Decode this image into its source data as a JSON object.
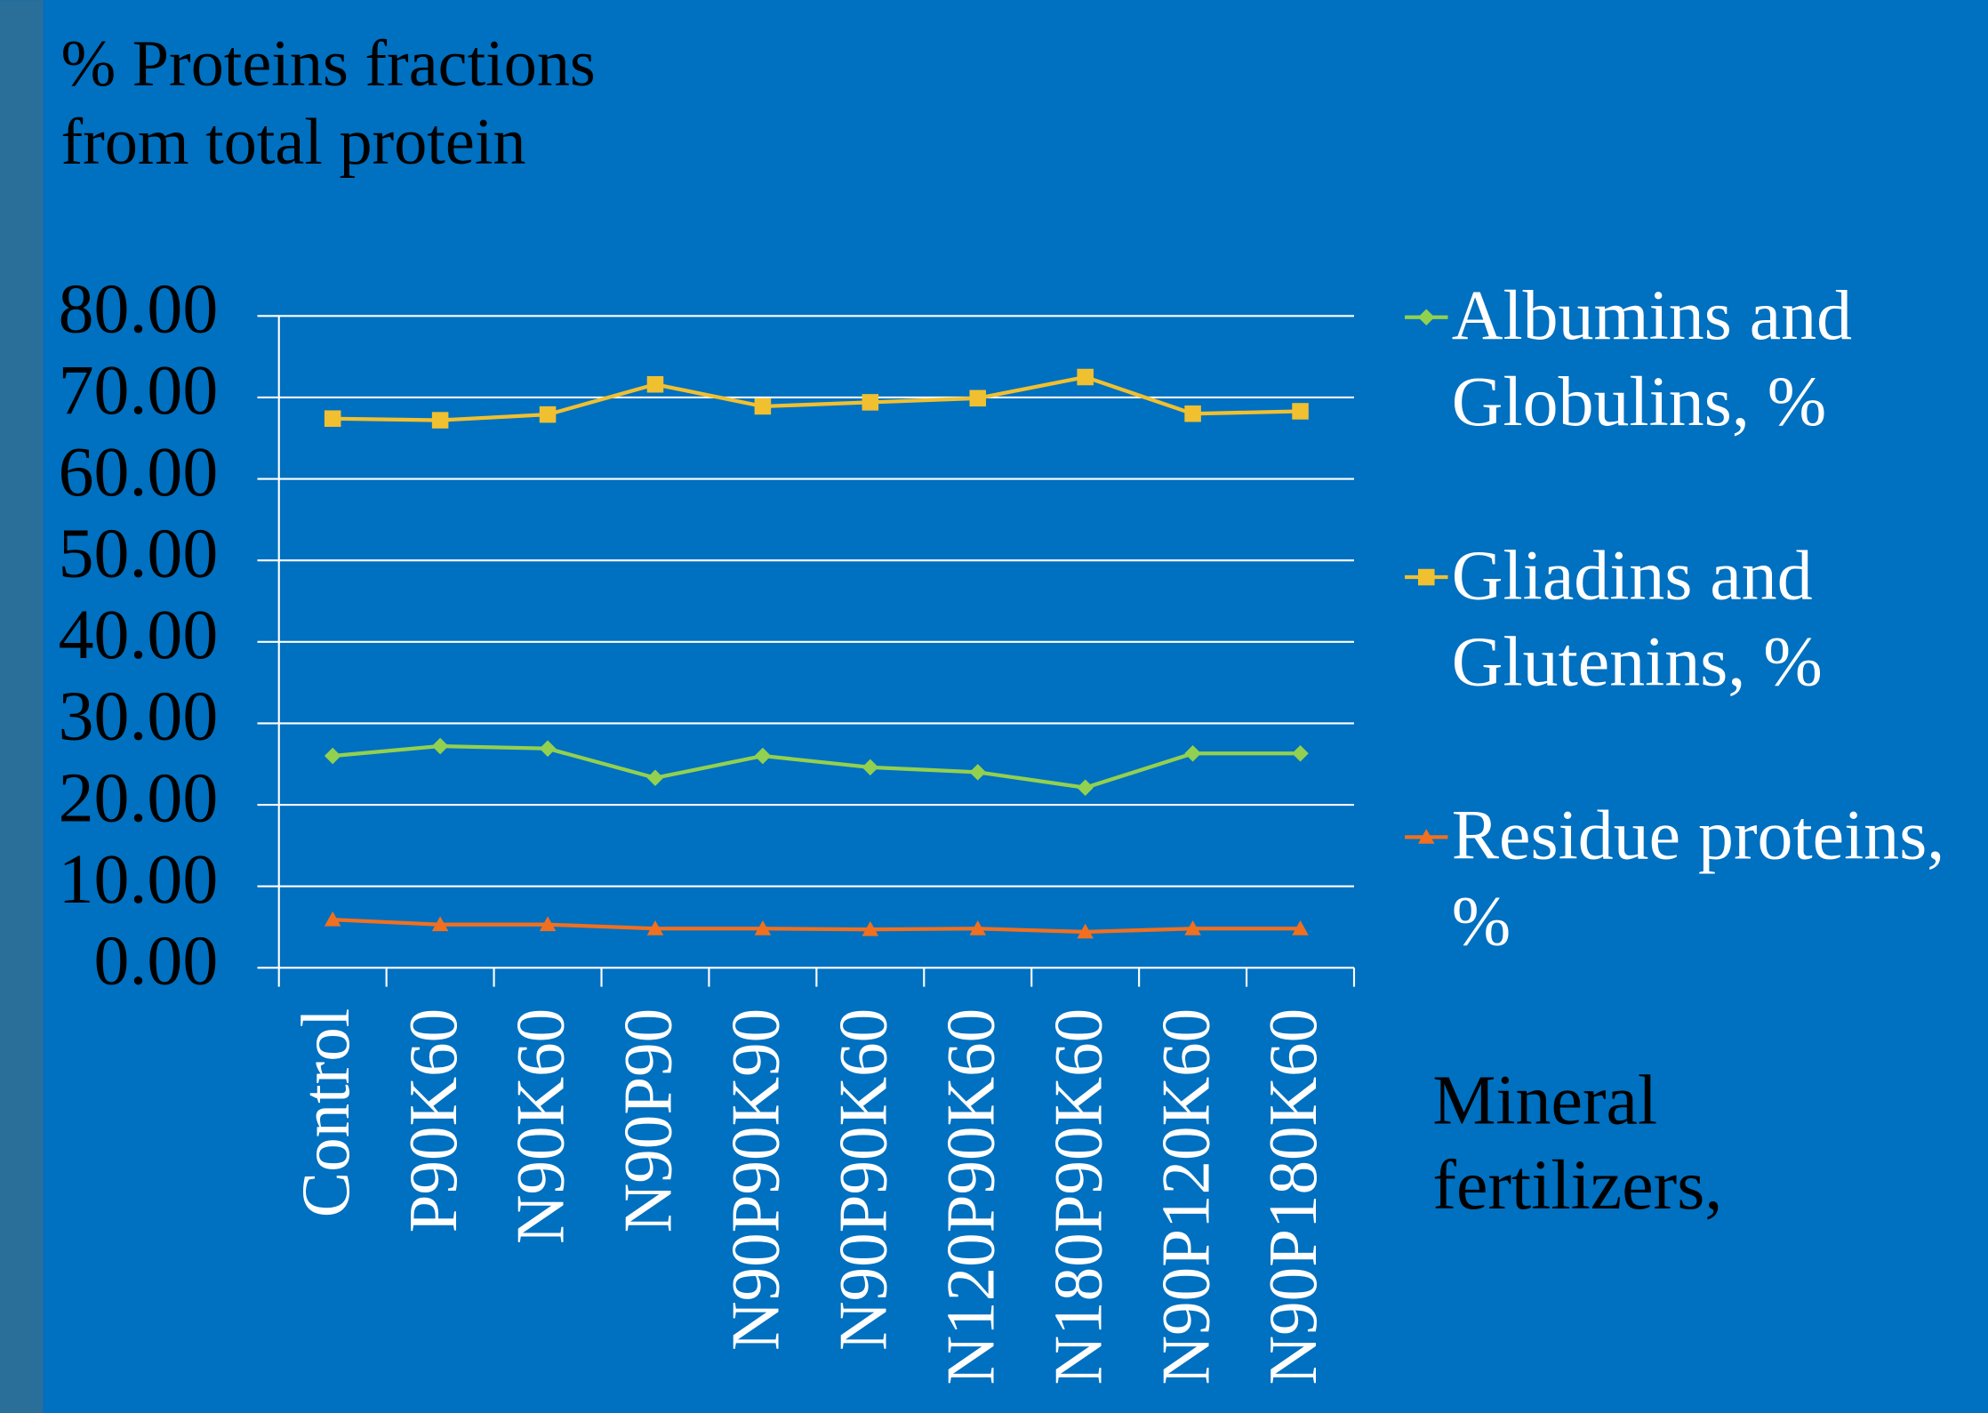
{
  "chart_data": {
    "type": "line",
    "title": "% Proteins fractions from total protein",
    "x_label": "Mineral fertilizers,",
    "categories": [
      "Control",
      "P90K60",
      "N90K60",
      "N90P90",
      "N90P90K90",
      "N90P90K60",
      "N120P90K60",
      "N180P90K60",
      "N90P120K60",
      "N90P180K60"
    ],
    "series": [
      {
        "name": "Albumins and Globulins, %",
        "color": "#92d050",
        "marker": "diamond",
        "values": [
          26.0,
          27.2,
          26.9,
          23.3,
          26.0,
          24.6,
          24.0,
          22.1,
          26.3,
          26.3
        ]
      },
      {
        "name": "Gliadins and Glutenins, %",
        "color": "#f0c030",
        "marker": "square",
        "values": [
          67.4,
          67.2,
          67.9,
          71.6,
          68.9,
          69.4,
          69.9,
          72.5,
          68.0,
          68.3
        ]
      },
      {
        "name": "Residue proteins, %",
        "color": "#f07020",
        "marker": "triangle",
        "values": [
          5.9,
          5.3,
          5.3,
          4.8,
          4.8,
          4.7,
          4.8,
          4.4,
          4.8,
          4.8
        ]
      }
    ],
    "ylim": [
      0,
      80
    ],
    "yticks": [
      {
        "value": 0,
        "label": "0.00"
      },
      {
        "value": 10,
        "label": "10.00"
      },
      {
        "value": 20,
        "label": "20.00"
      },
      {
        "value": 30,
        "label": "30.00"
      },
      {
        "value": 40,
        "label": "40.00"
      },
      {
        "value": 50,
        "label": "50.00"
      },
      {
        "value": 60,
        "label": "60.00"
      },
      {
        "value": 70,
        "label": "70.00"
      },
      {
        "value": 80,
        "label": "80.00"
      }
    ],
    "grid": true,
    "legend": "right"
  }
}
